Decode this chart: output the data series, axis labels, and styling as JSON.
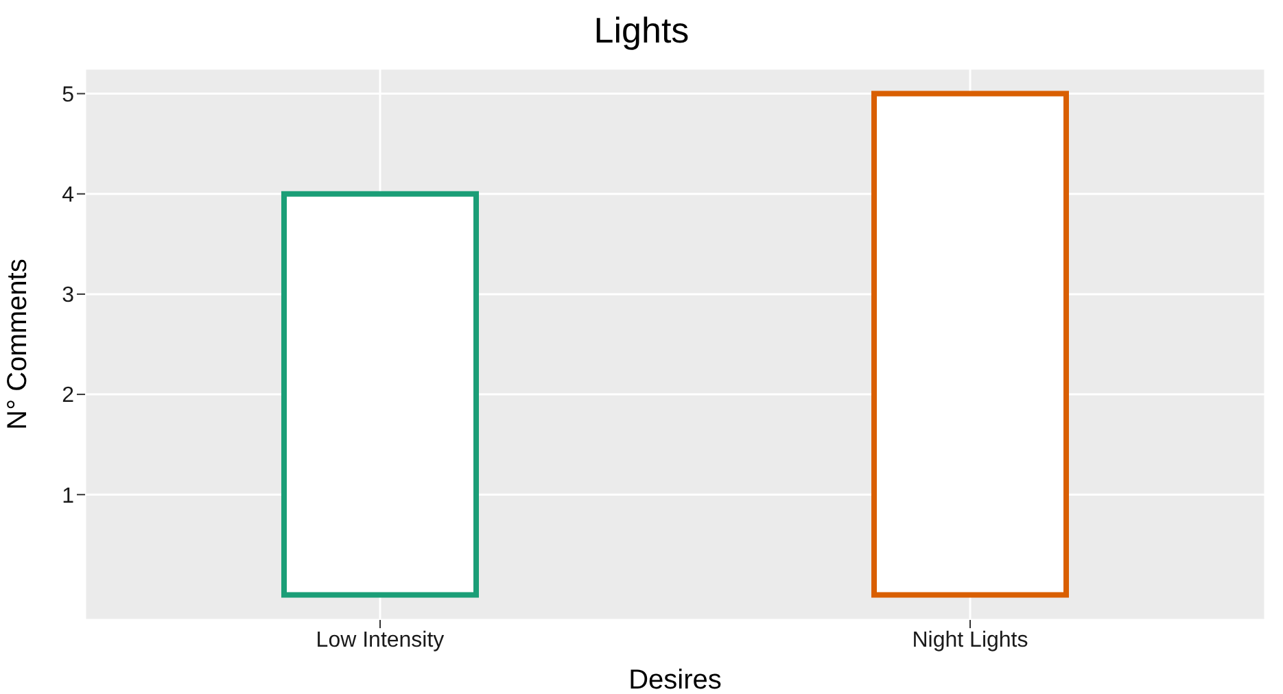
{
  "chart_data": {
    "type": "bar",
    "title": "Lights",
    "xlabel": "Desires",
    "ylabel": "N° Comments",
    "categories": [
      "Low Intensity",
      "Night Lights"
    ],
    "values": [
      4,
      5
    ],
    "colors": [
      "#1b9e77",
      "#d95f02"
    ],
    "ylim": [
      -0.25,
      5.25
    ],
    "yticks": [
      1,
      2,
      3,
      4,
      5
    ],
    "grid": true
  }
}
